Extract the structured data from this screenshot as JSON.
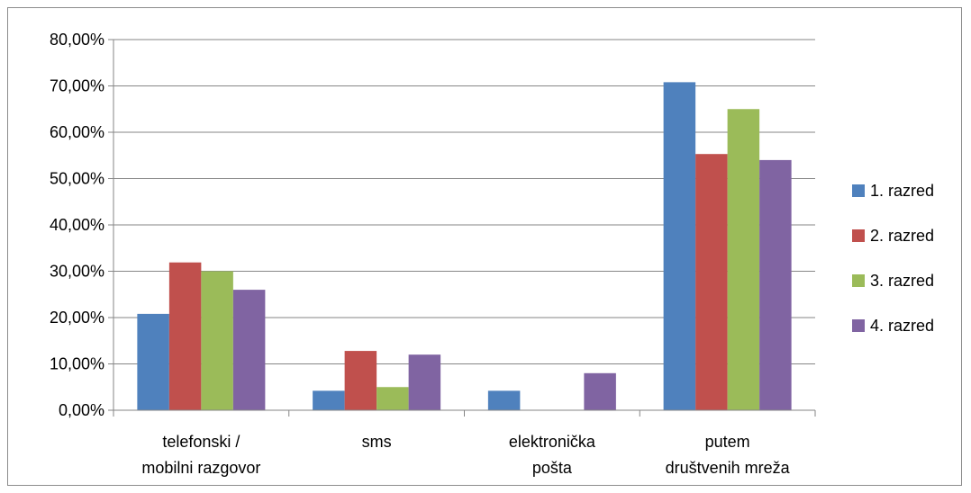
{
  "chart_data": {
    "type": "bar",
    "categories": [
      [
        "telefonski /",
        "mobilni razgovor"
      ],
      [
        "sms"
      ],
      [
        "elektronička",
        "pošta"
      ],
      [
        "putem",
        "društvenih mreža"
      ]
    ],
    "series": [
      {
        "name": "1. razred",
        "color": "#4F81BD",
        "values": [
          20.8,
          4.2,
          4.2,
          70.8
        ]
      },
      {
        "name": "2. razred",
        "color": "#C0504D",
        "values": [
          31.9,
          12.8,
          0,
          55.3
        ]
      },
      {
        "name": "3. razred",
        "color": "#9BBB59",
        "values": [
          30.0,
          5.0,
          0,
          65.0
        ]
      },
      {
        "name": "4. razred",
        "color": "#8064A2",
        "values": [
          26.0,
          12.0,
          8.0,
          54.0
        ]
      }
    ],
    "y_ticks": [
      "0,00%",
      "10,00%",
      "20,00%",
      "30,00%",
      "40,00%",
      "50,00%",
      "60,00%",
      "70,00%",
      "80,00%"
    ],
    "ylim": [
      0,
      80
    ],
    "grid": true,
    "legend_position": "right",
    "title": "",
    "xlabel": "",
    "ylabel": ""
  }
}
